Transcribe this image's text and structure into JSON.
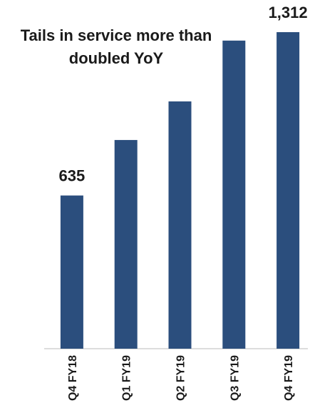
{
  "chart_data": {
    "type": "bar",
    "title": "Tails in service more than doubled YoY",
    "categories": [
      "Q4 FY18",
      "Q1 FY19",
      "Q2 FY19",
      "Q3 FY19",
      "Q4 FY19"
    ],
    "values": [
      635,
      865,
      1025,
      1277,
      1312
    ],
    "value_labels": [
      "635",
      null,
      null,
      null,
      "1,312"
    ],
    "color": "#2b4e7d"
  }
}
